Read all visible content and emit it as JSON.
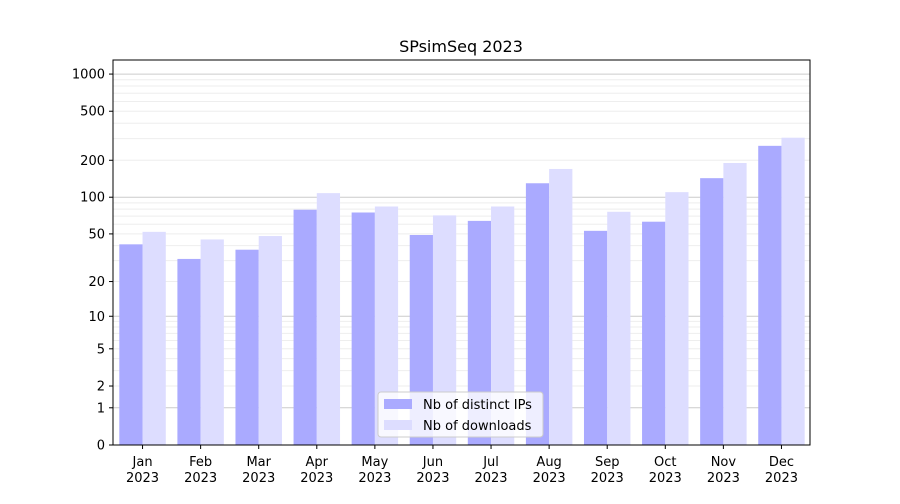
{
  "chart_data": {
    "type": "bar",
    "title": "SPsimSeq 2023",
    "xlabel": "",
    "ylabel": "",
    "y_scale": "log10(1+y)",
    "ylim": [
      0,
      1300
    ],
    "y_ticks": [
      0,
      1,
      2,
      5,
      10,
      20,
      50,
      100,
      200,
      500,
      1000
    ],
    "grid": true,
    "legend_position": "bottom-center",
    "categories": [
      "Jan\n2023",
      "Feb\n2023",
      "Mar\n2023",
      "Apr\n2023",
      "May\n2023",
      "Jun\n2023",
      "Jul\n2023",
      "Aug\n2023",
      "Sep\n2023",
      "Oct\n2023",
      "Nov\n2023",
      "Dec\n2023"
    ],
    "series": [
      {
        "name": "Nb of distinct IPs",
        "color": "#aaaaff",
        "values": [
          41,
          31,
          37,
          79,
          75,
          49,
          64,
          130,
          53,
          63,
          143,
          262
        ]
      },
      {
        "name": "Nb of downloads",
        "color": "#ddddff",
        "values": [
          52,
          45,
          48,
          108,
          84,
          71,
          84,
          170,
          76,
          110,
          190,
          305
        ]
      }
    ]
  }
}
